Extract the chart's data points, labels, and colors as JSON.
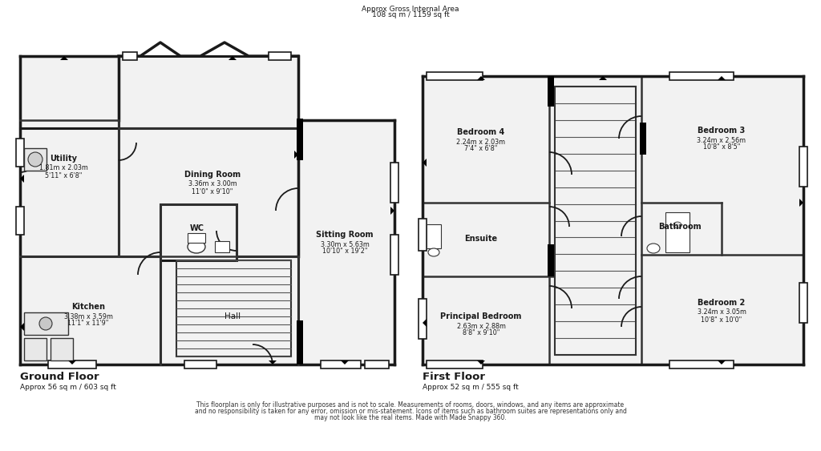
{
  "bg_color": "#ffffff",
  "wall_color": "#1a1a1a",
  "fill_color": "#f2f2f2",
  "header_text": "Approx Gross Internal Area\n108 sq m / 1159 sq ft",
  "ground_floor_label": "Ground Floor",
  "ground_floor_area": "Approx 56 sq m / 603 sq ft",
  "first_floor_label": "First Floor",
  "first_floor_area": "Approx 52 sq m / 555 sq ft",
  "disclaimer_line1": "This floorplan is only for illustrative purposes and is not to scale. Measurements of rooms, doors, windows, and any items are approximate",
  "disclaimer_line2": "and no responsibility is taken for any error, omission or mis-statement. Icons of items such as bathroom suites are representations only and",
  "disclaimer_line3": "may not look like the real items. Made with Made Snappy 360."
}
